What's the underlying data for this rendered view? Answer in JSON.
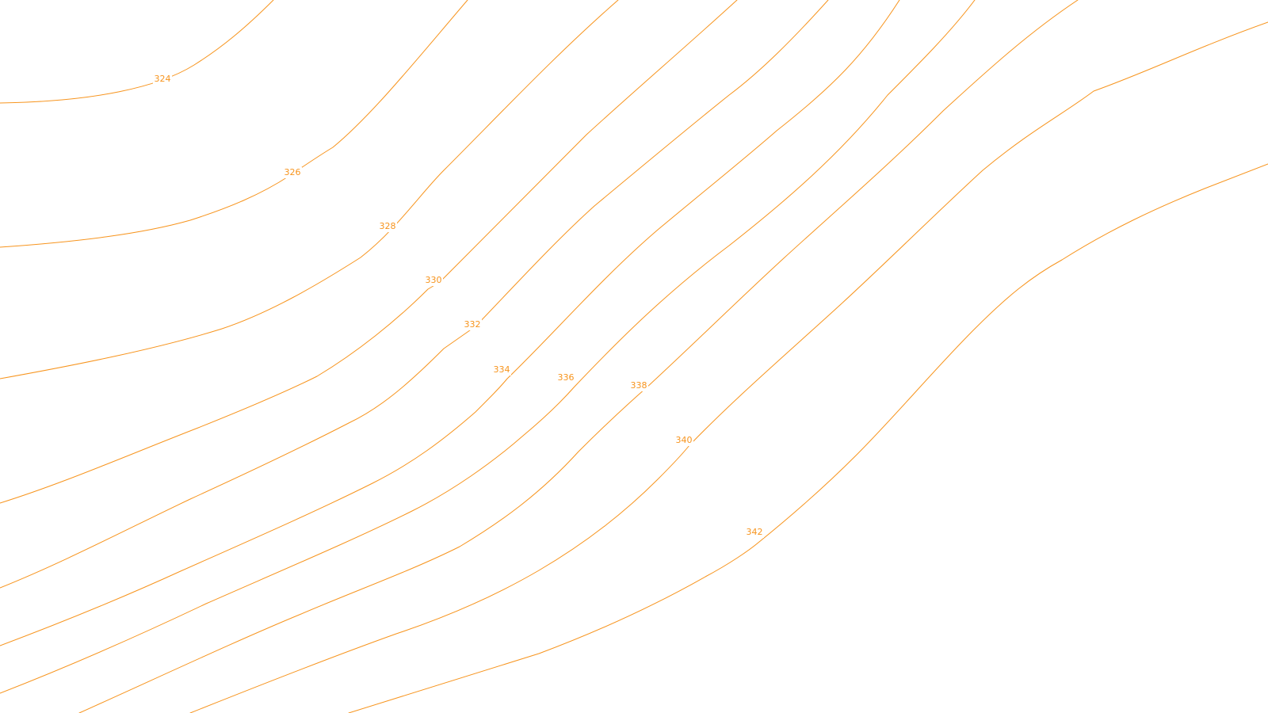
{
  "map": {
    "style": {
      "contour_color": "#F7941D",
      "background": "#FFFFFF"
    },
    "contours": [
      {
        "elevation": 324,
        "label": "324"
      },
      {
        "elevation": 326,
        "label": "326"
      },
      {
        "elevation": 328,
        "label": "328"
      },
      {
        "elevation": 330,
        "label": "330"
      },
      {
        "elevation": 332,
        "label": "332"
      },
      {
        "elevation": 334,
        "label": "334"
      },
      {
        "elevation": 336,
        "label": "336"
      },
      {
        "elevation": 338,
        "label": "338"
      },
      {
        "elevation": 340,
        "label": "340"
      },
      {
        "elevation": 342,
        "label": "342"
      }
    ]
  }
}
